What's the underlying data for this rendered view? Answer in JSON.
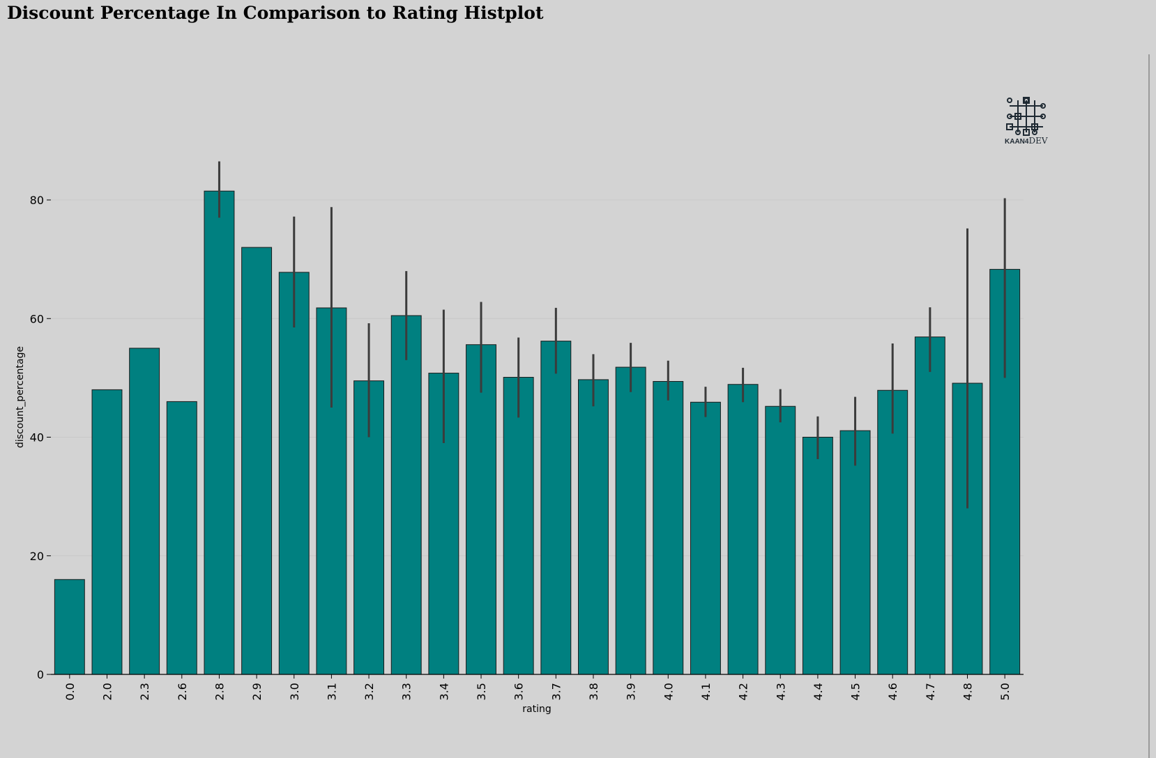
{
  "title": "Discount Percentage In Comparison to Rating Histplot",
  "logo": {
    "icon": "circuit-icon",
    "brand_bold": "KAAN4",
    "brand_light": "DEV"
  },
  "colors": {
    "background": "#d3d3d3",
    "bar_fill": "#008080",
    "bar_edge": "#1a1a1a",
    "errorbar": "#3b3b3b",
    "grid": "#c8c8c8"
  },
  "chart_data": {
    "type": "bar",
    "xlabel": "rating",
    "ylabel": "discount_percentage",
    "ylim": [
      0,
      90
    ],
    "yticks": [
      0,
      20,
      40,
      60,
      80
    ],
    "grid": "horizontal",
    "categories": [
      "0.0",
      "2.0",
      "2.3",
      "2.6",
      "2.8",
      "2.9",
      "3.0",
      "3.1",
      "3.2",
      "3.3",
      "3.4",
      "3.5",
      "3.6",
      "3.7",
      "3.8",
      "3.9",
      "4.0",
      "4.1",
      "4.2",
      "4.3",
      "4.4",
      "4.5",
      "4.6",
      "4.7",
      "4.8",
      "5.0"
    ],
    "values": [
      16.0,
      48.0,
      55.0,
      46.0,
      81.5,
      72.0,
      67.8,
      61.8,
      49.5,
      60.5,
      50.8,
      55.6,
      50.1,
      56.2,
      49.7,
      51.8,
      49.4,
      45.9,
      48.9,
      45.2,
      40.0,
      41.1,
      47.9,
      56.9,
      49.1,
      68.3
    ],
    "error_low": [
      null,
      null,
      null,
      null,
      77.0,
      null,
      58.5,
      45.0,
      40.0,
      53.0,
      39.0,
      47.5,
      43.3,
      50.7,
      45.2,
      47.6,
      46.2,
      43.4,
      45.9,
      42.5,
      36.3,
      35.2,
      40.6,
      51.0,
      28.0,
      50.0
    ],
    "error_high": [
      null,
      null,
      null,
      null,
      86.5,
      null,
      77.2,
      78.8,
      59.2,
      68.0,
      61.5,
      62.8,
      56.8,
      61.8,
      54.0,
      55.9,
      52.9,
      48.5,
      51.7,
      48.1,
      43.5,
      46.8,
      55.8,
      61.9,
      75.2,
      80.3
    ]
  }
}
